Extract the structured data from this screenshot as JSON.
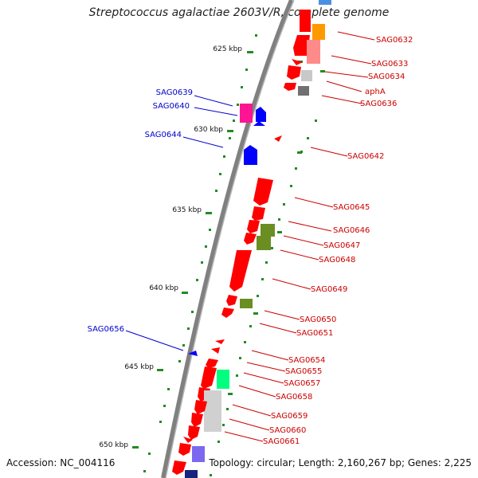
{
  "title": "Streptococcus agalactiae 2603V/R, complete genome",
  "accession": "Accession: NC_004116",
  "summary": "Topology: circular; Length: 2,160,267 bp; Genes: 2,225",
  "ticks": [
    "625 kbp",
    "630 kbp",
    "635 kbp",
    "640 kbp",
    "645 kbp",
    "650 kbp"
  ],
  "genes_left": [
    "SAG0639",
    "SAG0640",
    "SAG0644",
    "SAG0656"
  ],
  "genes_right": [
    "SAG0632",
    "SAG0633",
    "SAG0634",
    "aphA",
    "SAG0636",
    "SAG0642",
    "SAG0645",
    "SAG0646",
    "SAG0647",
    "SAG0648",
    "SAG0649",
    "SAG0650",
    "SAG0651",
    "SAG0654",
    "SAG0655",
    "SAG0657",
    "SAG0658",
    "SAG0659",
    "SAG0660",
    "SAG0661"
  ],
  "colors": {
    "forward_label": "#0000cc",
    "reverse_label": "#cc0000",
    "backbone": "#808080",
    "tick": "#228b22",
    "red_gene": "#ff0000",
    "blue_gene": "#0000ff",
    "olive_gene": "#6b8e23",
    "gray_gene": "#c0c0c0",
    "pink_gene": "#ff1493",
    "green_gene": "#00ff7f",
    "orange_gene": "#ff9900",
    "purple_gene": "#7b68ee"
  }
}
